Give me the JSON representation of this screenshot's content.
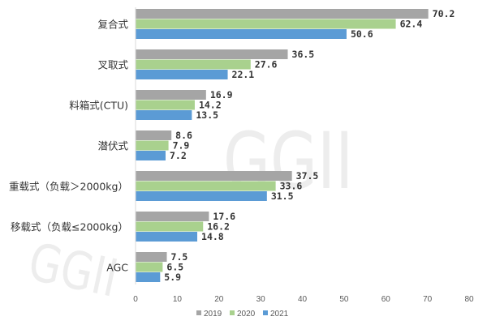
{
  "chart_data": {
    "type": "bar",
    "orientation": "horizontal",
    "categories": [
      "复合式",
      "叉取式",
      "料箱式(CTU)",
      "潜伏式",
      "重载式（负载＞2000kg）",
      "移载式（负载≤2000kg）",
      "AGC"
    ],
    "series": [
      {
        "name": "2019",
        "color": "#a5a5a5",
        "values": [
          70.2,
          36.5,
          16.9,
          8.6,
          37.5,
          17.6,
          7.5
        ]
      },
      {
        "name": "2020",
        "color": "#a9d18e",
        "values": [
          62.4,
          27.6,
          14.2,
          7.9,
          33.6,
          16.2,
          6.5
        ]
      },
      {
        "name": "2021",
        "color": "#5b9bd5",
        "values": [
          50.6,
          22.1,
          13.5,
          7.2,
          31.5,
          14.8,
          5.9
        ]
      }
    ],
    "value_labels": [
      [
        "70.2",
        "36.5",
        "16.9",
        "8.6",
        "37.5",
        "17.6",
        "7.5"
      ],
      [
        "62.4",
        "27.6",
        "14.2",
        "7.9",
        "33.6",
        "16.2",
        "6.5"
      ],
      [
        "50.6",
        "22.1",
        "13.5",
        "7.2",
        "31.5",
        "14.8",
        "5.9"
      ]
    ],
    "xlim": [
      0,
      80
    ],
    "xticks": [
      0,
      10,
      20,
      30,
      40,
      50,
      60,
      70,
      80
    ],
    "xtick_labels": [
      "0",
      "10",
      "20",
      "30",
      "40",
      "50",
      "60",
      "70",
      "80"
    ],
    "grid": false,
    "legend": "bottom-center"
  },
  "watermark": {
    "text": "GGII"
  }
}
